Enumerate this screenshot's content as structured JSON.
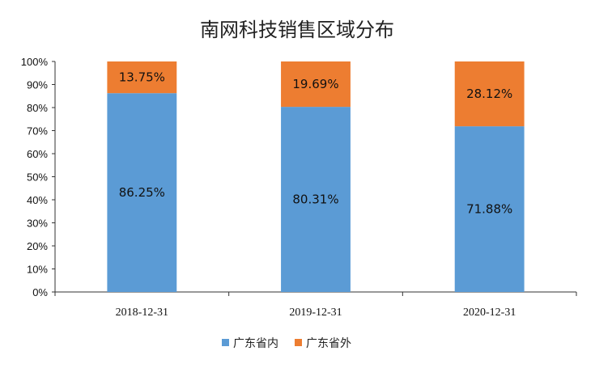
{
  "chart_data": {
    "type": "bar",
    "stacked": true,
    "title": "南网科技销售区域分布",
    "categories": [
      "2018-12-31",
      "2019-12-31",
      "2020-12-31"
    ],
    "series": [
      {
        "name": "广东省内",
        "values": [
          86.25,
          80.31,
          71.88
        ],
        "labels": [
          "86.25%",
          "80.31%",
          "71.88%"
        ],
        "color": "#5B9BD5"
      },
      {
        "name": "广东省外",
        "values": [
          13.75,
          19.69,
          28.12
        ],
        "labels": [
          "13.75%",
          "19.69%",
          "28.12%"
        ],
        "color": "#ED7D31"
      }
    ],
    "ylim": [
      0,
      100
    ],
    "y_ticks": [
      "0%",
      "10%",
      "20%",
      "30%",
      "40%",
      "50%",
      "60%",
      "70%",
      "80%",
      "90%",
      "100%"
    ],
    "grid": false,
    "legend_position": "bottom"
  }
}
